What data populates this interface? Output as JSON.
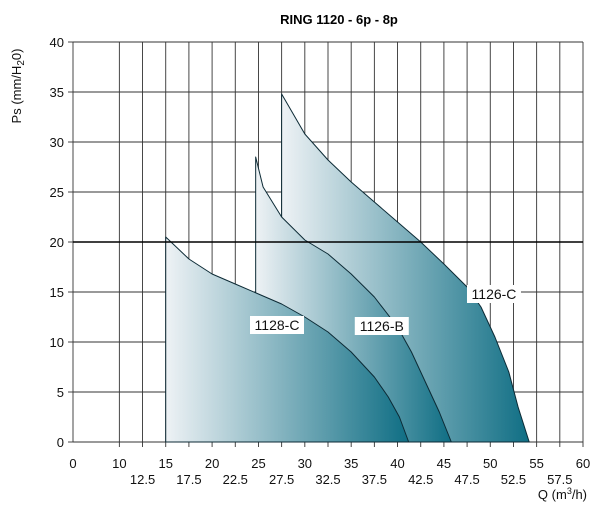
{
  "chart_data": {
    "type": "area",
    "title": "RING 1120 - 6p - 8p",
    "ylabel": "Ps (mm/H",
    "ylabel_sub": "2",
    "ylabel_end": "0)",
    "xlabel": "Q (m",
    "xlabel_sup": "3",
    "xlabel_end": "/h)",
    "xlim": [
      5,
      60
    ],
    "ylim": [
      0,
      40
    ],
    "grid": true,
    "y_ticks": [
      "0",
      "5",
      "10",
      "15",
      "20",
      "25",
      "30",
      "35",
      "40"
    ],
    "x_ticks_upper": [
      "0",
      "10",
      "15",
      "20",
      "25",
      "30",
      "35",
      "40",
      "45",
      "50",
      "55",
      "60"
    ],
    "x_ticks_lower": [
      "12.5",
      "17.5",
      "22.5",
      "27.5",
      "32.5",
      "37.5",
      "42.5",
      "47.5",
      "52.5",
      "57.5"
    ],
    "series": [
      {
        "name": "1126-C",
        "x": [
          27.5,
          30,
          32.5,
          35,
          37.5,
          40,
          42.5,
          45,
          47.5,
          49,
          50.5,
          52,
          53,
          54.2
        ],
        "y": [
          34.8,
          30.8,
          28.2,
          26.0,
          24.0,
          22.0,
          20.0,
          17.8,
          15.5,
          13.5,
          10.5,
          7.0,
          3.5,
          0
        ]
      },
      {
        "name": "1126-B",
        "x": [
          24.7,
          25.5,
          27.5,
          30,
          32.5,
          35,
          37.5,
          40,
          41.5,
          43,
          44.5,
          45.8
        ],
        "y": [
          28.5,
          25.5,
          22.5,
          20.2,
          18.8,
          16.8,
          14.5,
          11.5,
          9.0,
          6.0,
          3.0,
          0
        ]
      },
      {
        "name": "1128-C",
        "x": [
          15,
          17.5,
          20,
          22.5,
          25,
          27.5,
          30,
          32.5,
          35,
          37.5,
          39,
          40.2,
          41.2
        ],
        "y": [
          20.5,
          18.3,
          16.8,
          15.8,
          14.8,
          13.8,
          12.5,
          11.0,
          9.0,
          6.5,
          4.5,
          2.5,
          0
        ]
      }
    ],
    "curve_labels": [
      {
        "series": "1128-C",
        "text": "1128-C",
        "x": 27,
        "y": 11.7
      },
      {
        "series": "1126-B",
        "text": "1126-B",
        "x": 38.3,
        "y": 11.6
      },
      {
        "series": "1126-C",
        "text": "1126-C",
        "x": 50.4,
        "y": 14.8
      }
    ],
    "colors": {
      "fill_light": "#eef2f5",
      "fill_dark": "#0f6e84",
      "stroke": "#0c2a35",
      "grid": "#333333"
    }
  }
}
